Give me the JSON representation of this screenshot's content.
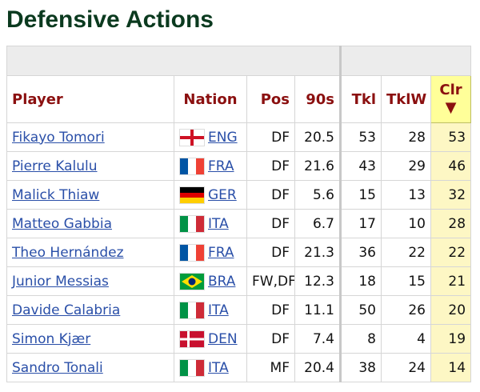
{
  "title": "Defensive Actions",
  "table": {
    "headers": [
      "Player",
      "Nation",
      "Pos",
      "90s",
      "Tkl",
      "TklW",
      "Clr"
    ],
    "sort_indicator": "▼",
    "rows": [
      [
        "Fikayo Tomori",
        "ENG",
        "DF",
        20.5,
        53,
        28,
        53
      ],
      [
        "Pierre Kalulu",
        "FRA",
        "DF",
        21.6,
        43,
        29,
        46
      ],
      [
        "Malick Thiaw",
        "GER",
        "DF",
        5.6,
        15,
        13,
        32
      ],
      [
        "Matteo Gabbia",
        "ITA",
        "DF",
        6.7,
        17,
        10,
        28
      ],
      [
        "Theo Hernández",
        "FRA",
        "DF",
        21.3,
        36,
        22,
        22
      ],
      [
        "Junior Messias",
        "BRA",
        "FW,DF",
        12.3,
        18,
        15,
        21
      ],
      [
        "Davide Calabria",
        "ITA",
        "DF",
        11.1,
        50,
        26,
        20
      ],
      [
        "Simon Kjær",
        "DEN",
        "DF",
        7.4,
        8,
        4,
        19
      ],
      [
        "Sandro Tonali",
        "ITA",
        "MF",
        20.4,
        38,
        24,
        14
      ]
    ]
  }
}
